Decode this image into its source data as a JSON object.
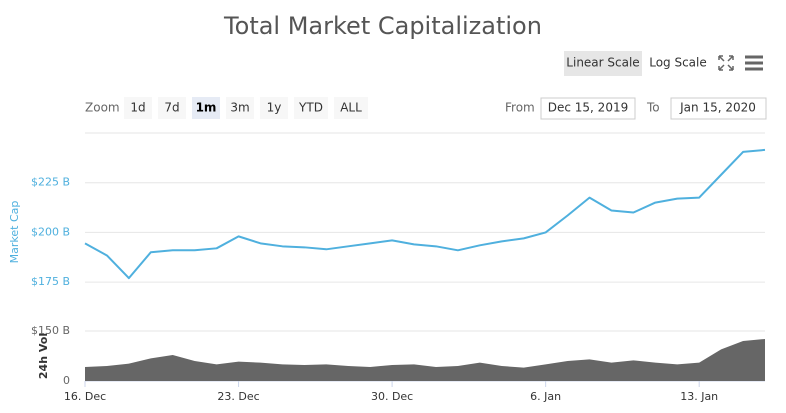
{
  "chart_data": {
    "type": "line",
    "title": "Total Market Capitalization",
    "y_label": "Market Cap",
    "y2_label": "24h Vol",
    "x": [
      "2019-12-16",
      "2019-12-17",
      "2019-12-18",
      "2019-12-19",
      "2019-12-20",
      "2019-12-21",
      "2019-12-22",
      "2019-12-23",
      "2019-12-24",
      "2019-12-25",
      "2019-12-26",
      "2019-12-27",
      "2019-12-28",
      "2019-12-29",
      "2019-12-30",
      "2019-12-31",
      "2020-01-01",
      "2020-01-02",
      "2020-01-03",
      "2020-01-04",
      "2020-01-05",
      "2020-01-06",
      "2020-01-07",
      "2020-01-08",
      "2020-01-09",
      "2020-01-10",
      "2020-01-11",
      "2020-01-12",
      "2020-01-13",
      "2020-01-14",
      "2020-01-15",
      "2020-01-16"
    ],
    "series": [
      {
        "name": "Market Cap",
        "color": "#4fb0de",
        "values": [
          194.5,
          188.4,
          177,
          190,
          191,
          191,
          192,
          198,
          194.5,
          193,
          192.5,
          191.5,
          193,
          194.5,
          196,
          194,
          193,
          191,
          193.5,
          195.5,
          197,
          200,
          208.5,
          217.5,
          211,
          210,
          215,
          217,
          217.5,
          229,
          240.5,
          241.5
        ]
      },
      {
        "name": "24h Vol",
        "color": "#666666",
        "axis": "y2",
        "values": [
          42,
          45,
          52,
          68,
          78,
          60,
          50,
          58,
          55,
          50,
          48,
          50,
          45,
          42,
          48,
          50,
          42,
          45,
          55,
          45,
          40,
          50,
          60,
          65,
          55,
          62,
          55,
          50,
          55,
          95,
          120,
          126
        ]
      }
    ],
    "xlim": [
      "2019-12-16",
      "2020-01-16"
    ],
    "xticks": [
      {
        "value": "2019-12-16",
        "label": "16. Dec"
      },
      {
        "value": "2019-12-23",
        "label": "23. Dec"
      },
      {
        "value": "2019-12-30",
        "label": "30. Dec"
      },
      {
        "value": "2020-01-06",
        "label": "6. Jan"
      },
      {
        "value": "2020-01-13",
        "label": "13. Jan"
      }
    ],
    "ylim": [
      166,
      250
    ],
    "yticks": [
      {
        "value": 175,
        "label": "$175 B"
      },
      {
        "value": 200,
        "label": "$200 B"
      },
      {
        "value": 225,
        "label": "$225 B"
      }
    ],
    "y2lim": [
      0,
      150
    ],
    "y2ticks": [
      0,
      {
        "value": 150,
        "label": "$150 B"
      }
    ],
    "grid": true
  },
  "controls": {
    "scale_buttons": [
      "Linear Scale",
      "Log Scale"
    ],
    "selected_scale": 0,
    "zoom_label": "Zoom",
    "zoom_buttons": [
      "1d",
      "7d",
      "1m",
      "3m",
      "1y",
      "YTD",
      "ALL"
    ],
    "selected_zoom": 2,
    "from_label": "From",
    "from_value": "Dec 15, 2019",
    "to_label": "To",
    "to_value": "Jan 15, 2020"
  }
}
